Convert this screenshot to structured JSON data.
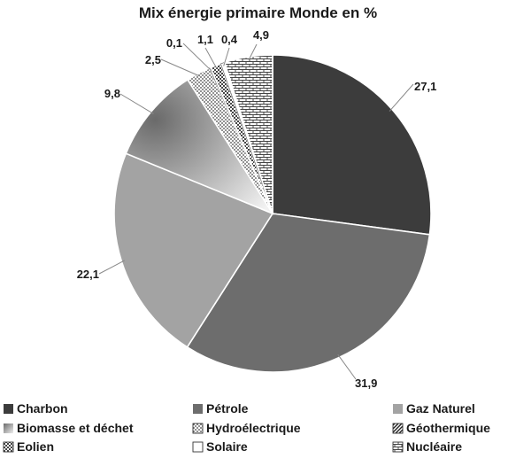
{
  "chart_data": {
    "type": "pie",
    "title": "Mix énergie primaire Monde en %",
    "slices": [
      {
        "name": "Charbon",
        "value": 27.1,
        "label": "27,1",
        "color": "#3c3c3c",
        "pattern": "solid"
      },
      {
        "name": "Pétrole",
        "value": 31.9,
        "label": "31,9",
        "color": "#6d6d6d",
        "pattern": "solid"
      },
      {
        "name": "Gaz Naturel",
        "value": 22.1,
        "label": "22,1",
        "color": "#a3a3a3",
        "pattern": "solid"
      },
      {
        "name": "Biomasse et déchet",
        "value": 9.8,
        "label": "9,8",
        "color": "#8a8a8a",
        "pattern": "gradient"
      },
      {
        "name": "Hydroélectrique",
        "value": 2.5,
        "label": "2,5",
        "color": "#555555",
        "pattern": "dots"
      },
      {
        "name": "Géothermique",
        "value": 0.1,
        "label": "0,1",
        "color": "#333333",
        "pattern": "diagonal"
      },
      {
        "name": "Eolien",
        "value": 1.1,
        "label": "1,1",
        "color": "#555555",
        "pattern": "checker"
      },
      {
        "name": "Solaire",
        "value": 0.4,
        "label": "0,4",
        "color": "#ffffff",
        "pattern": "white"
      },
      {
        "name": "Nucléaire",
        "value": 4.9,
        "label": "4,9",
        "color": "#555555",
        "pattern": "bricks"
      }
    ],
    "legend_position": "bottom"
  }
}
